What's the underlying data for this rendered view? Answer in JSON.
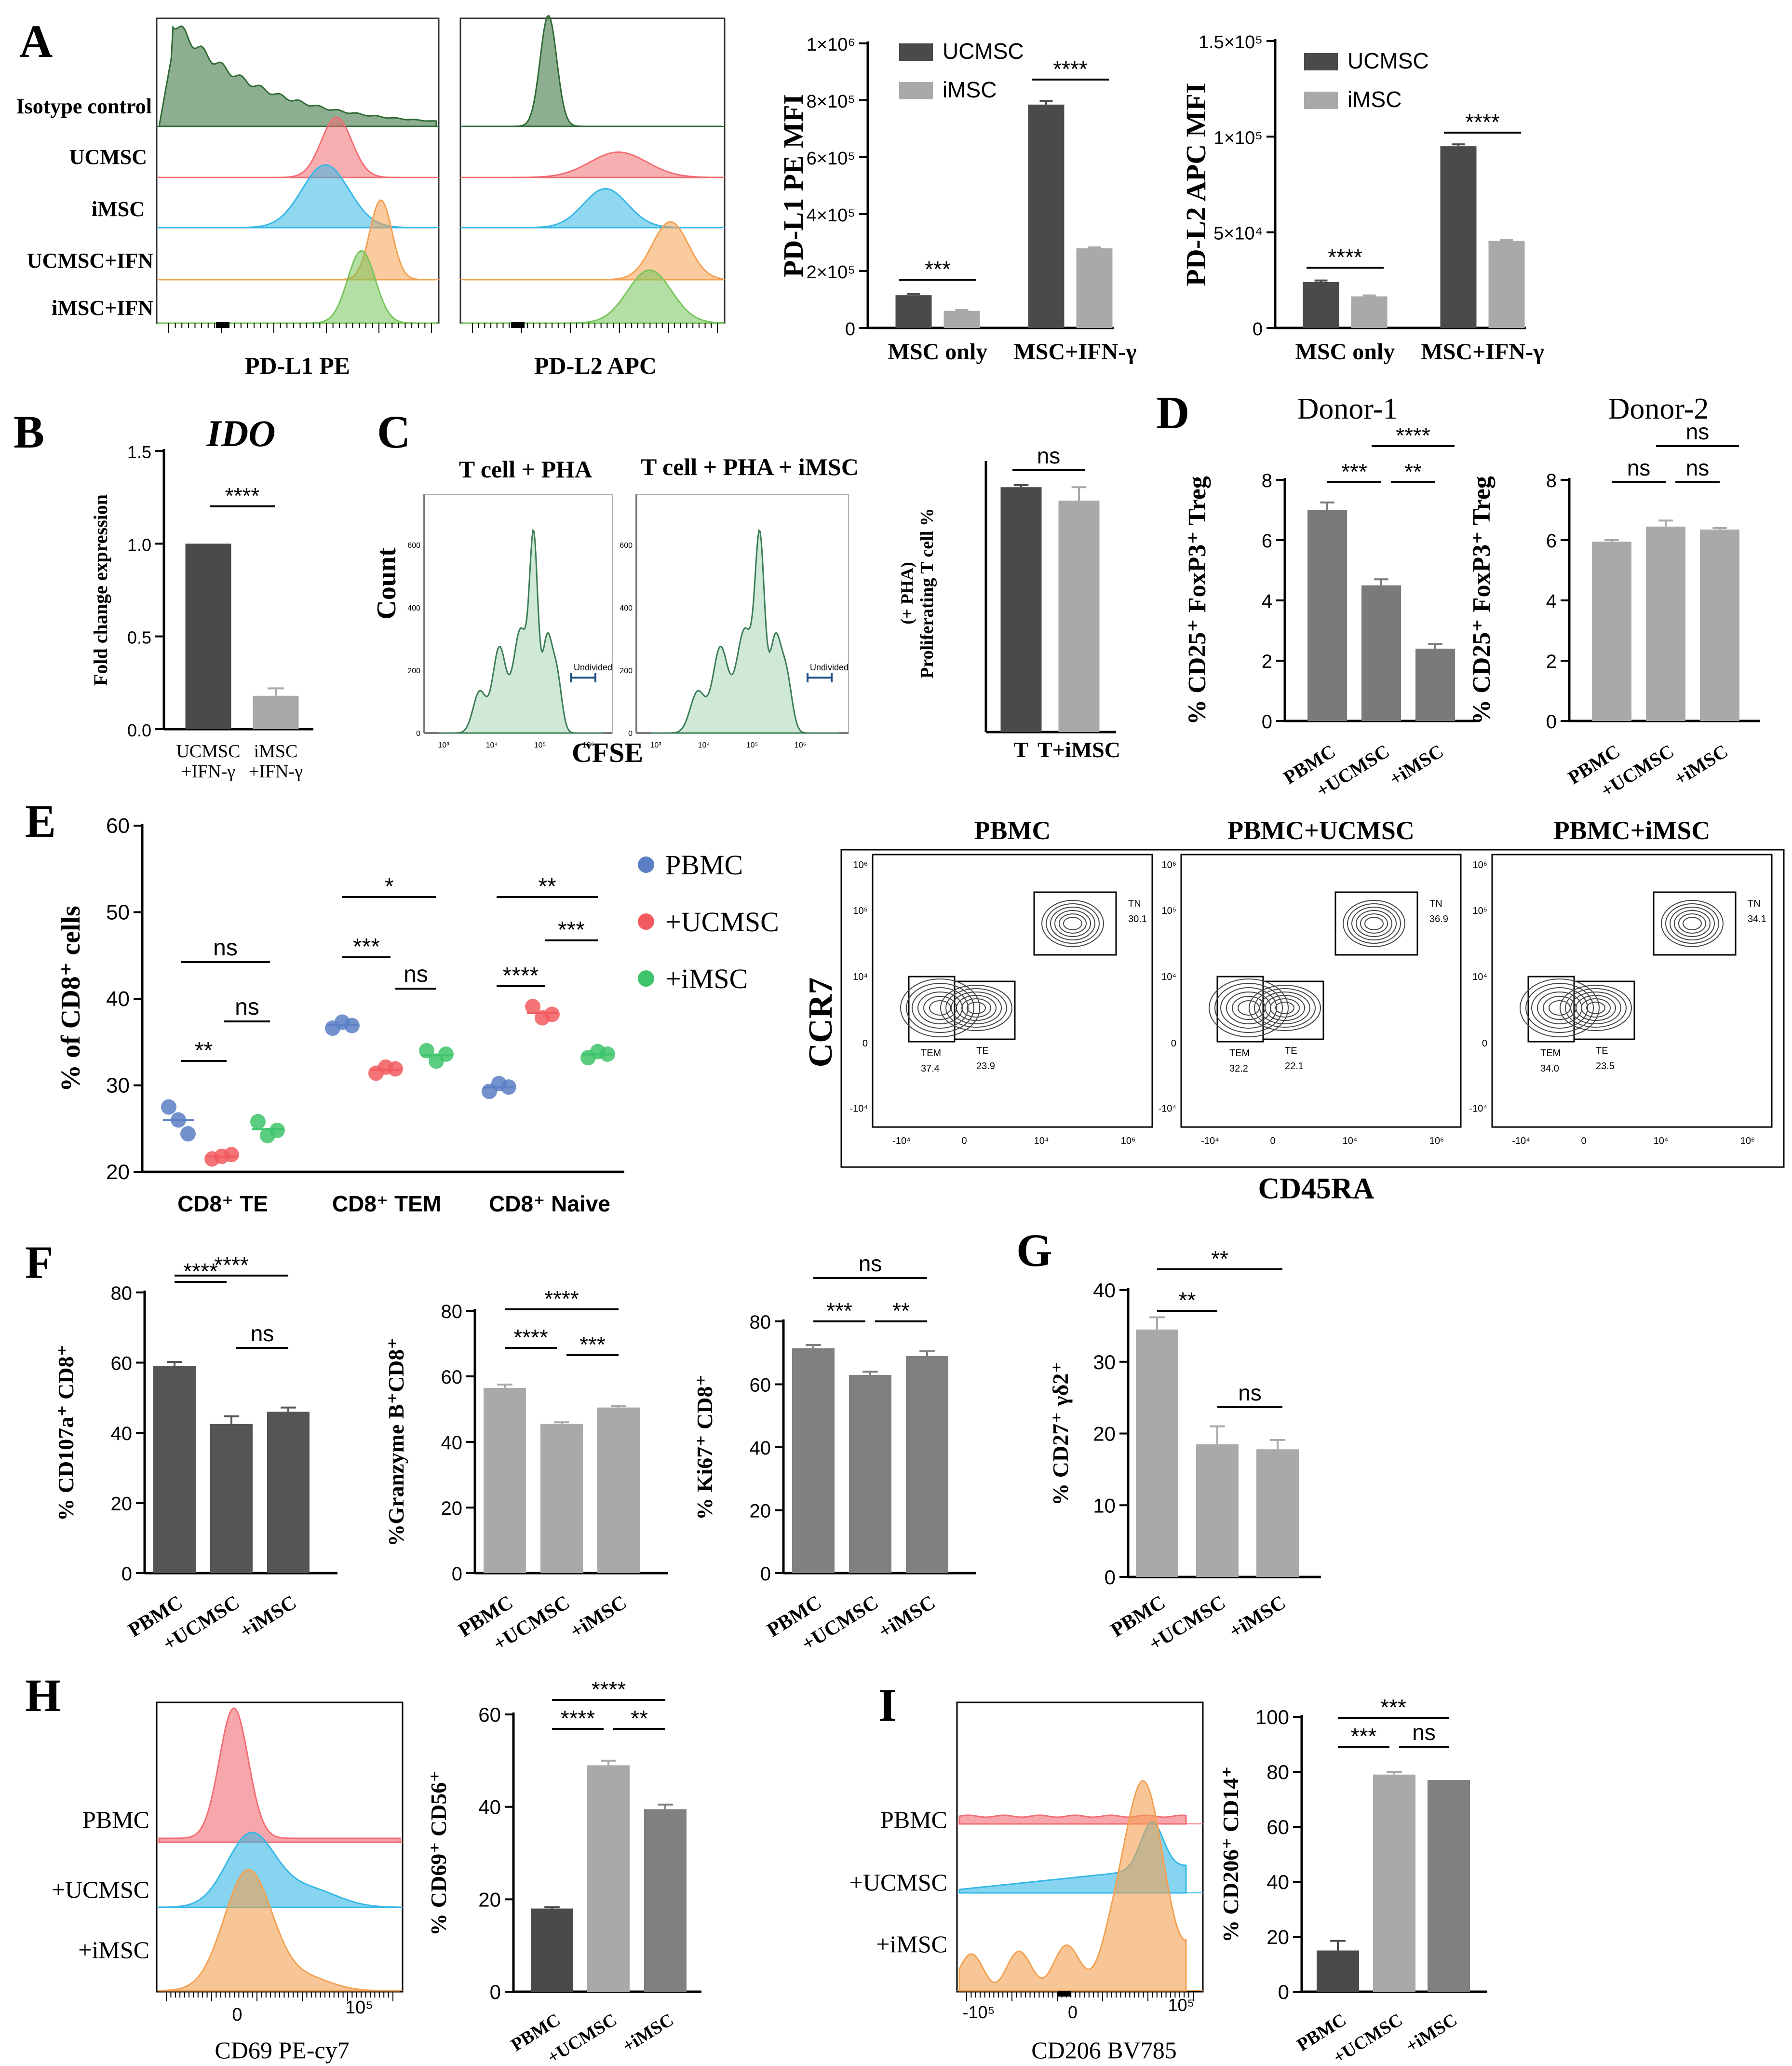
{
  "panels": {
    "A": {
      "letter": "A",
      "hist": {
        "sample_labels": [
          "Isotype control",
          "UCMSC",
          "iMSC",
          "UCMSC+IFN",
          "iMSC+IFN"
        ],
        "pdl1_xlabel": "PD-L1 PE",
        "pdl2_xlabel": "PD-L2 APC",
        "colors": [
          "#2f6b35",
          "#f26d73",
          "#35b7e6",
          "#f4a050",
          "#76c45a"
        ]
      },
      "mfi1": {
        "ylabel": "PD-L1 PE MFI",
        "ticks": [
          "0",
          "2×10⁵",
          "4×10⁵",
          "6×10⁵",
          "8×10⁵",
          "1×10⁶"
        ],
        "groups": [
          "MSC only",
          "MSC+IFN-γ"
        ],
        "legend": [
          "UCMSC",
          "iMSC"
        ],
        "sig": [
          "***",
          "****"
        ]
      },
      "mfi2": {
        "ylabel": "PD-L2 APC MFI",
        "ticks": [
          "0",
          "5×10⁴",
          "1×10⁵",
          "1.5×10⁵"
        ],
        "groups": [
          "MSC only",
          "MSC+IFN-γ"
        ],
        "legend": [
          "UCMSC",
          "iMSC"
        ],
        "sig": [
          "****",
          "****"
        ]
      }
    },
    "B": {
      "letter": "B",
      "title": "IDO",
      "ylabel": "Fold change expression",
      "ticks": [
        "0.0",
        "0.5",
        "1.0",
        "1.5"
      ],
      "cats": [
        "UCMSC",
        "+IFN-γ",
        "iMSC",
        "+IFN-γ"
      ],
      "sig": "****"
    },
    "C": {
      "letter": "C",
      "title1": "T cell + PHA",
      "title2": "T cell + PHA + iMSC",
      "ylabel": "Count",
      "xlabel": "CFSE",
      "gate": "Undivided",
      "ticks": [
        "0",
        "200",
        "400",
        "600"
      ],
      "xticks": [
        "10³",
        "10⁴",
        "10⁵",
        "10⁶"
      ],
      "bar_ylabel1": "Proliferating T cell %",
      "bar_ylabel2": "(+ PHA)",
      "cats": [
        "T",
        "T+iMSC"
      ],
      "sig": "ns"
    },
    "D": {
      "letter": "D",
      "title1": "Donor-1",
      "title2": "Donor-2",
      "ylabel": "% CD25⁺ FoxP3⁺ Treg",
      "ticks": [
        "0",
        "2",
        "4",
        "6",
        "8"
      ],
      "cats": [
        "PBMC",
        "+UCMSC",
        "+iMSC"
      ],
      "sig1": [
        "***",
        "**",
        "****"
      ],
      "sig2": [
        "ns",
        "ns",
        "ns"
      ]
    },
    "E": {
      "letter": "E",
      "ylabel": "% of CD8⁺ cells",
      "ticks": [
        "20",
        "30",
        "40",
        "50",
        "60"
      ],
      "groups": [
        "CD8⁺ TE",
        "CD8⁺ TEM",
        "CD8⁺ Naive"
      ],
      "legend": [
        "PBMC",
        "+UCMSC",
        "+iMSC"
      ],
      "colors": [
        "#5a7fc4",
        "#f25a5f",
        "#3ec46a"
      ],
      "sig": [
        "**",
        "ns",
        "ns",
        "***",
        "ns",
        "*",
        "****",
        "***",
        "**"
      ],
      "contour": {
        "titles": [
          "PBMC",
          "PBMC+UCMSC",
          "PBMC+iMSC"
        ],
        "ylabel": "CCR7",
        "xlabel": "CD45RA",
        "gate_names": [
          "TN",
          "TEM",
          "TE"
        ],
        "values": [
          [
            "30.1",
            "37.4",
            "23.9"
          ],
          [
            "36.9",
            "32.2",
            "22.1"
          ],
          [
            "34.1",
            "34.0",
            "23.5"
          ]
        ],
        "yticks": [
          "10⁶",
          "10⁵",
          "10⁴",
          "0",
          "-10⁴"
        ],
        "xticks": [
          "-10⁴",
          "0",
          "10⁴",
          "10⁶"
        ]
      }
    },
    "F": {
      "letter": "F",
      "ylabels": [
        "% CD107a⁺ CD8⁺",
        "%Granzyme B⁺CD8⁺",
        "% Ki67⁺ CD8⁺"
      ],
      "ticks": [
        "0",
        "20",
        "40",
        "60",
        "80"
      ],
      "cats": [
        "PBMC",
        "+UCMSC",
        "+iMSC"
      ],
      "sig1": [
        "****",
        "ns",
        "****"
      ],
      "sig2": [
        "****",
        "***",
        "****"
      ],
      "sig3": [
        "***",
        "**",
        "ns"
      ]
    },
    "G": {
      "letter": "G",
      "ylabel": "% CD27⁺ γδ2⁺",
      "ticks": [
        "0",
        "10",
        "20",
        "30",
        "40"
      ],
      "cats": [
        "PBMC",
        "+UCMSC",
        "+iMSC"
      ],
      "sig": [
        "**",
        "ns",
        "**"
      ]
    },
    "H": {
      "letter": "H",
      "hist_labels": [
        "PBMC",
        "+UCMSC",
        "+iMSC"
      ],
      "xlabel": "CD69 PE-cy7",
      "xticks": [
        "0",
        "10⁵"
      ],
      "ylabel": "% CD69⁺ CD56⁺",
      "ticks": [
        "0",
        "20",
        "40",
        "60"
      ],
      "cats": [
        "PBMC",
        "+UCMSC",
        "+iMSC"
      ],
      "sig": [
        "****",
        "**",
        "****"
      ]
    },
    "I": {
      "letter": "I",
      "hist_labels": [
        "PBMC",
        "+UCMSC",
        "+iMSC"
      ],
      "xlabel": "CD206 BV785",
      "xticks": [
        "-10⁵",
        "0",
        "10⁵"
      ],
      "ylabel": "% CD206⁺ CD14⁺",
      "ticks": [
        "0",
        "20",
        "40",
        "60",
        "80",
        "100"
      ],
      "cats": [
        "PBMC",
        "+UCMSC",
        "+iMSC"
      ],
      "sig": [
        "***",
        "ns",
        "***"
      ]
    }
  },
  "chart_data": [
    {
      "id": "A-pdl1-mfi",
      "type": "bar",
      "title": "",
      "ylabel": "PD-L1 PE MFI",
      "categories": [
        "MSC only",
        "MSC+IFN-γ"
      ],
      "ylim": [
        0,
        1000000
      ],
      "series": [
        {
          "name": "UCMSC",
          "values": [
            115000,
            785000
          ],
          "errors": [
            4000,
            12000
          ],
          "color": "#4a4a4a"
        },
        {
          "name": "iMSC",
          "values": [
            60000,
            280000
          ],
          "errors": [
            3000,
            3000
          ],
          "color": "#a9a9a9"
        }
      ]
    },
    {
      "id": "A-pdl2-mfi",
      "type": "bar",
      "ylabel": "PD-L2 APC MFI",
      "categories": [
        "MSC only",
        "MSC+IFN-γ"
      ],
      "ylim": [
        0,
        150000
      ],
      "series": [
        {
          "name": "UCMSC",
          "values": [
            24000,
            95000
          ],
          "errors": [
            800,
            1000
          ],
          "color": "#4a4a4a"
        },
        {
          "name": "iMSC",
          "values": [
            16500,
            45500
          ],
          "errors": [
            500,
            500
          ],
          "color": "#a9a9a9"
        }
      ]
    },
    {
      "id": "B-ido",
      "type": "bar",
      "title": "IDO",
      "ylabel": "Fold change expression",
      "categories": [
        "UCMSC +IFN-γ",
        "iMSC +IFN-γ"
      ],
      "ylim": [
        0,
        1.5
      ],
      "values": [
        1.0,
        0.18
      ],
      "errors": [
        0,
        0.04
      ],
      "colors": [
        "#4a4a4a",
        "#a9a9a9"
      ]
    },
    {
      "id": "C-prolif",
      "type": "bar",
      "ylabel": "Proliferating T cell % (+ PHA)",
      "categories": [
        "T",
        "T+iMSC"
      ],
      "ylim": [
        0,
        100
      ],
      "values": [
        91,
        86
      ],
      "errors": [
        0.8,
        5
      ],
      "colors": [
        "#4a4a4a",
        "#a9a9a9"
      ]
    },
    {
      "id": "D-donor1",
      "type": "bar",
      "title": "Donor-1",
      "ylabel": "% CD25⁺ FoxP3⁺ Treg",
      "categories": [
        "PBMC",
        "+UCMSC",
        "+iMSC"
      ],
      "ylim": [
        0,
        8
      ],
      "values": [
        7.0,
        4.5,
        2.4
      ],
      "errors": [
        0.25,
        0.2,
        0.15
      ],
      "colors": [
        "#7a7a7a",
        "#7a7a7a",
        "#7a7a7a"
      ]
    },
    {
      "id": "D-donor2",
      "type": "bar",
      "title": "Donor-2",
      "ylabel": "% CD25⁺ FoxP3⁺ Treg",
      "categories": [
        "PBMC",
        "+UCMSC",
        "+iMSC"
      ],
      "ylim": [
        0,
        8
      ],
      "values": [
        5.95,
        6.45,
        6.35
      ],
      "errors": [
        0.05,
        0.2,
        0.05
      ],
      "colors": [
        "#a9a9a9",
        "#a9a9a9",
        "#a9a9a9"
      ]
    },
    {
      "id": "E-cd8",
      "type": "scatter",
      "ylabel": "% of CD8⁺ cells",
      "categories": [
        "CD8⁺ TE",
        "CD8⁺ TEM",
        "CD8⁺ Naive"
      ],
      "ylim": [
        20,
        60
      ],
      "series": [
        {
          "name": "PBMC",
          "points": [
            [
              27.5,
              26.0,
              24.4
            ],
            [
              36.6,
              37.3,
              36.9
            ],
            [
              29.3,
              30.2,
              29.8
            ]
          ]
        },
        {
          "name": "+UCMSC",
          "points": [
            [
              21.5,
              21.8,
              22.0
            ],
            [
              31.4,
              32.1,
              31.9
            ],
            [
              39.1,
              37.8,
              38.2
            ]
          ]
        },
        {
          "name": "+iMSC",
          "points": [
            [
              25.8,
              24.2,
              24.8
            ],
            [
              34.0,
              32.8,
              33.6
            ],
            [
              33.2,
              33.9,
              33.6
            ]
          ]
        }
      ]
    },
    {
      "id": "F-cd107a",
      "type": "bar",
      "ylabel": "% CD107a⁺ CD8⁺",
      "categories": [
        "PBMC",
        "+UCMSC",
        "+iMSC"
      ],
      "ylim": [
        0,
        80
      ],
      "values": [
        59,
        42.5,
        46
      ],
      "errors": [
        1.2,
        2.2,
        1.2
      ],
      "colors": [
        "#555555",
        "#555555",
        "#555555"
      ]
    },
    {
      "id": "F-grzb",
      "type": "bar",
      "ylabel": "%Granzyme B⁺CD8⁺",
      "categories": [
        "PBMC",
        "+UCMSC",
        "+iMSC"
      ],
      "ylim": [
        0,
        80
      ],
      "values": [
        56.5,
        45.5,
        50.5
      ],
      "errors": [
        1.0,
        0.5,
        0.5
      ],
      "colors": [
        "#a9a9a9",
        "#a9a9a9",
        "#a9a9a9"
      ]
    },
    {
      "id": "F-ki67",
      "type": "bar",
      "ylabel": "% Ki67⁺ CD8⁺",
      "categories": [
        "PBMC",
        "+UCMSC",
        "+iMSC"
      ],
      "ylim": [
        0,
        80
      ],
      "values": [
        71.5,
        63,
        69
      ],
      "errors": [
        1,
        1,
        1.5
      ],
      "colors": [
        "#808080",
        "#808080",
        "#808080"
      ]
    },
    {
      "id": "G-cd27",
      "type": "bar",
      "ylabel": "% CD27⁺ γδ2⁺",
      "categories": [
        "PBMC",
        "+UCMSC",
        "+iMSC"
      ],
      "ylim": [
        0,
        40
      ],
      "values": [
        34.5,
        18.5,
        17.8
      ],
      "errors": [
        1.7,
        2.5,
        1.3
      ],
      "colors": [
        "#a9a9a9",
        "#a9a9a9",
        "#a9a9a9"
      ]
    },
    {
      "id": "H-cd69",
      "type": "bar",
      "ylabel": "% CD69⁺ CD56⁺",
      "categories": [
        "PBMC",
        "+UCMSC",
        "+iMSC"
      ],
      "ylim": [
        0,
        60
      ],
      "values": [
        18,
        49,
        39.5
      ],
      "errors": [
        0.3,
        1,
        1
      ],
      "colors": [
        "#4a4a4a",
        "#a9a9a9",
        "#808080"
      ]
    },
    {
      "id": "I-cd206",
      "type": "bar",
      "ylabel": "% CD206⁺ CD14⁺",
      "categories": [
        "PBMC",
        "+UCMSC",
        "+iMSC"
      ],
      "ylim": [
        0,
        100
      ],
      "values": [
        15,
        79,
        77
      ],
      "errors": [
        3.5,
        1,
        0
      ],
      "colors": [
        "#4a4a4a",
        "#a9a9a9",
        "#808080"
      ]
    }
  ]
}
